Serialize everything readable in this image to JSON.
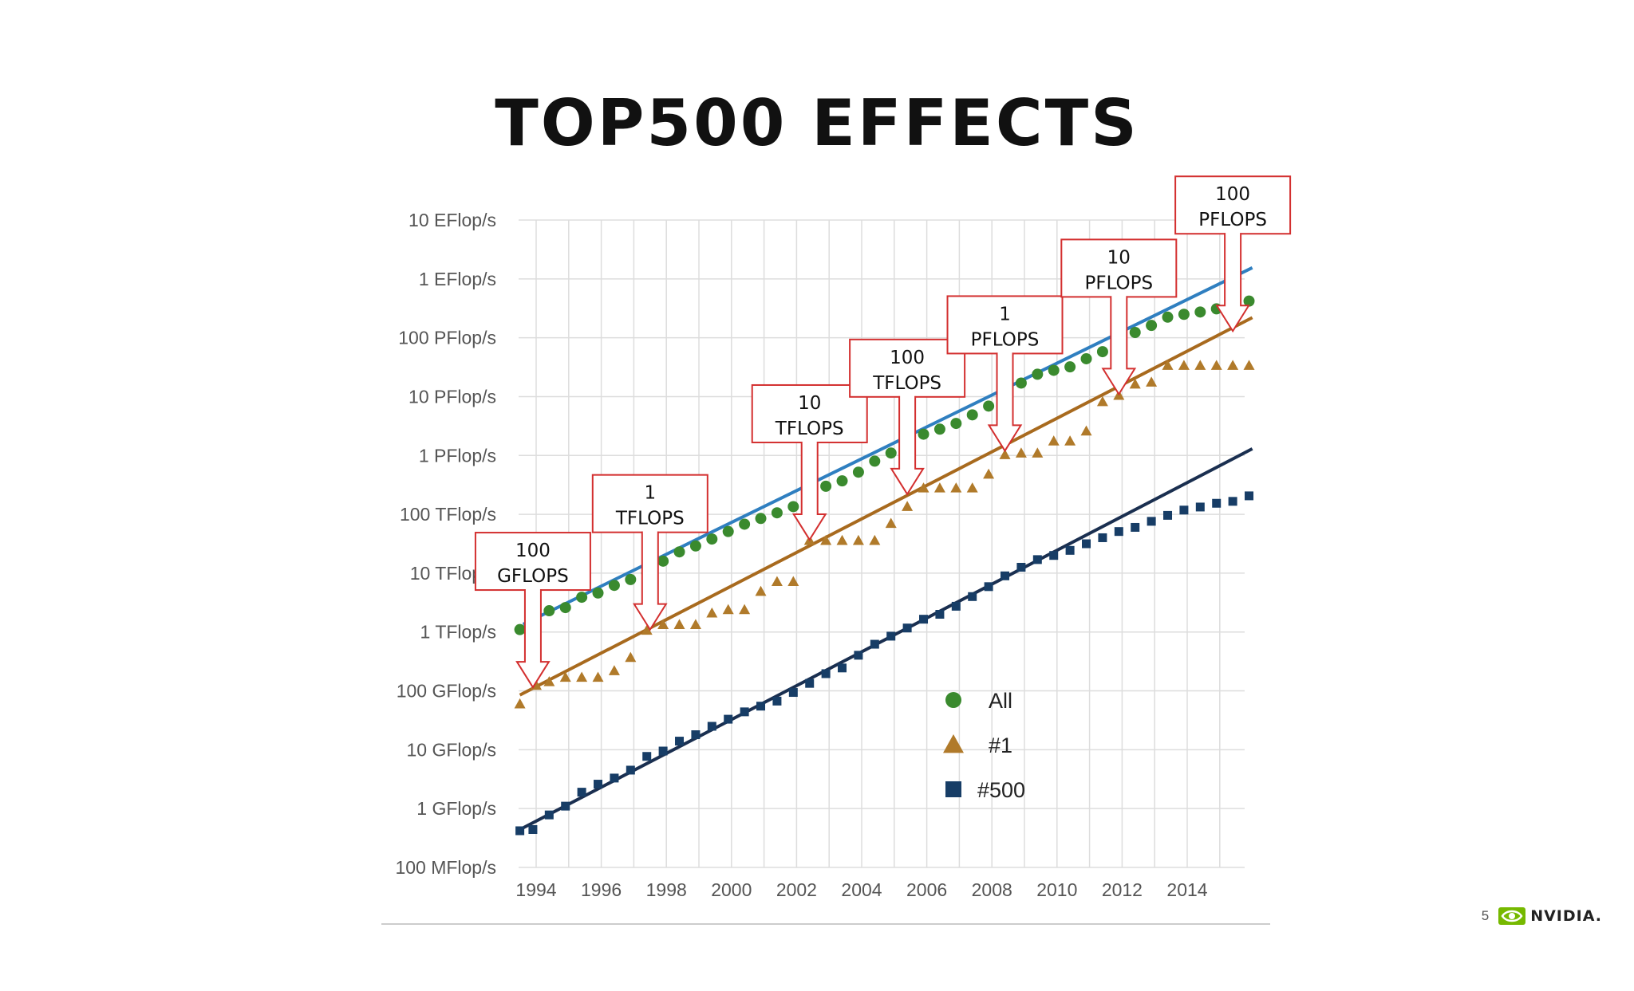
{
  "slide": {
    "title": "TOP500 EFFECTS",
    "page_number": "5",
    "brand": "NVIDIA."
  },
  "colors": {
    "all": "#3A8A2E",
    "first": "#B07A2A",
    "last": "#173D66",
    "trend_all": "#2F7FC0",
    "trend_first": "#A86A1E",
    "trend_last": "#1A2F50",
    "callout_border": "#D32F2F",
    "grid": "#DDDDDD",
    "brand_green": "#76B900"
  },
  "chart_data": {
    "type": "scatter",
    "y_scale": "log",
    "y_unit": "Flop/s",
    "xlim": [
      1993.5,
      2016
    ],
    "ylim": [
      100000000.0,
      1e+19
    ],
    "grid": true,
    "legend_position": "bottom-right",
    "y_ticks": [
      {
        "value": 1e+19,
        "label": "10 EFlop/s"
      },
      {
        "value": 1e+18,
        "label": "1 EFlop/s"
      },
      {
        "value": 1e+17,
        "label": "100 PFlop/s"
      },
      {
        "value": 1e+16,
        "label": "10 PFlop/s"
      },
      {
        "value": 1000000000000000.0,
        "label": "1 PFlop/s"
      },
      {
        "value": 100000000000000.0,
        "label": "100 TFlop/s"
      },
      {
        "value": 10000000000000.0,
        "label": "10 TFlop/s"
      },
      {
        "value": 1000000000000.0,
        "label": "1 TFlop/s"
      },
      {
        "value": 100000000000.0,
        "label": "100 GFlop/s"
      },
      {
        "value": 10000000000.0,
        "label": "10 GFlop/s"
      },
      {
        "value": 1000000000.0,
        "label": "1 GFlop/s"
      },
      {
        "value": 100000000.0,
        "label": "100 MFlop/s"
      }
    ],
    "x_ticks": [
      1994,
      1996,
      1998,
      2000,
      2002,
      2004,
      2006,
      2008,
      2010,
      2012,
      2014
    ],
    "series": [
      {
        "name": "All",
        "marker": "circle",
        "points": [
          [
            1993.5,
            1100000000000.0
          ],
          [
            1994.4,
            2300000000000.0
          ],
          [
            1994.9,
            2600000000000.0
          ],
          [
            1995.4,
            3900000000000.0
          ],
          [
            1995.9,
            4600000000000.0
          ],
          [
            1996.4,
            6200000000000.0
          ],
          [
            1996.9,
            7800000000000.0
          ],
          [
            1997.4,
            10000000000000.0
          ],
          [
            1997.9,
            16000000000000.0
          ],
          [
            1998.4,
            23000000000000.0
          ],
          [
            1998.9,
            29000000000000.0
          ],
          [
            1999.4,
            38000000000000.0
          ],
          [
            1999.9,
            51000000000000.0
          ],
          [
            2000.4,
            68000000000000.0
          ],
          [
            2000.9,
            85000000000000.0
          ],
          [
            2001.4,
            106000000000000.0
          ],
          [
            2001.9,
            135000000000000.0
          ],
          [
            2002.4,
            230000000000000.0
          ],
          [
            2002.9,
            300000000000000.0
          ],
          [
            2003.4,
            370000000000000.0
          ],
          [
            2003.9,
            520000000000000.0
          ],
          [
            2004.4,
            800000000000000.0
          ],
          [
            2004.9,
            1100000000000000.0
          ],
          [
            2005.4,
            1700000000000000.0
          ],
          [
            2005.9,
            2300000000000000.0
          ],
          [
            2006.4,
            2800000000000000.0
          ],
          [
            2006.9,
            3500000000000000.0
          ],
          [
            2007.4,
            4900000000000000.0
          ],
          [
            2007.9,
            6900000000000000.0
          ],
          [
            2008.4,
            1.1e+16
          ],
          [
            2008.9,
            1.7e+16
          ],
          [
            2009.4,
            2.4e+16
          ],
          [
            2009.9,
            2.8e+16
          ],
          [
            2010.4,
            3.2e+16
          ],
          [
            2010.9,
            4.4e+16
          ],
          [
            2011.4,
            5.8e+16
          ],
          [
            2011.9,
            7.4e+16
          ],
          [
            2012.4,
            1.23e+17
          ],
          [
            2012.9,
            1.62e+17
          ],
          [
            2013.4,
            2.24e+17
          ],
          [
            2013.9,
            2.5e+17
          ],
          [
            2014.4,
            2.74e+17
          ],
          [
            2014.9,
            3.1e+17
          ],
          [
            2015.4,
            3.6e+17
          ],
          [
            2015.9,
            4.2e+17
          ]
        ]
      },
      {
        "name": "#1",
        "marker": "triangle",
        "points": [
          [
            1993.5,
            60000000000.0
          ],
          [
            1994.0,
            124000000000.0
          ],
          [
            1994.4,
            143000000000.0
          ],
          [
            1994.9,
            170000000000.0
          ],
          [
            1995.4,
            170000000000.0
          ],
          [
            1995.9,
            170000000000.0
          ],
          [
            1996.4,
            220000000000.0
          ],
          [
            1996.9,
            370000000000.0
          ],
          [
            1997.4,
            1070000000000.0
          ],
          [
            1997.9,
            1340000000000.0
          ],
          [
            1998.4,
            1340000000000.0
          ],
          [
            1998.9,
            1340000000000.0
          ],
          [
            1999.4,
            2100000000000.0
          ],
          [
            1999.9,
            2400000000000.0
          ],
          [
            2000.4,
            2400000000000.0
          ],
          [
            2000.9,
            4900000000000.0
          ],
          [
            2001.4,
            7200000000000.0
          ],
          [
            2001.9,
            7200000000000.0
          ],
          [
            2002.4,
            36000000000000.0
          ],
          [
            2002.9,
            36000000000000.0
          ],
          [
            2003.4,
            36000000000000.0
          ],
          [
            2003.9,
            36000000000000.0
          ],
          [
            2004.4,
            36000000000000.0
          ],
          [
            2004.9,
            70000000000000.0
          ],
          [
            2005.4,
            136000000000000.0
          ],
          [
            2005.9,
            280000000000000.0
          ],
          [
            2006.4,
            280000000000000.0
          ],
          [
            2006.9,
            280000000000000.0
          ],
          [
            2007.4,
            280000000000000.0
          ],
          [
            2007.9,
            480000000000000.0
          ],
          [
            2008.4,
            1030000000000000.0
          ],
          [
            2008.9,
            1100000000000000.0
          ],
          [
            2009.4,
            1100000000000000.0
          ],
          [
            2009.9,
            1760000000000000.0
          ],
          [
            2010.4,
            1760000000000000.0
          ],
          [
            2010.9,
            2600000000000000.0
          ],
          [
            2011.4,
            8200000000000000.0
          ],
          [
            2011.9,
            1.05e+16
          ],
          [
            2012.4,
            1.63e+16
          ],
          [
            2012.9,
            1.76e+16
          ],
          [
            2013.4,
            3.39e+16
          ],
          [
            2013.9,
            3.39e+16
          ],
          [
            2014.4,
            3.39e+16
          ],
          [
            2014.9,
            3.39e+16
          ],
          [
            2015.4,
            3.39e+16
          ],
          [
            2015.9,
            3.39e+16
          ]
        ]
      },
      {
        "name": "#500",
        "marker": "square",
        "points": [
          [
            1993.5,
            420000000.0
          ],
          [
            1993.9,
            440000000.0
          ],
          [
            1994.4,
            780000000.0
          ],
          [
            1994.9,
            1100000000.0
          ],
          [
            1995.4,
            1900000000.0
          ],
          [
            1995.9,
            2600000000.0
          ],
          [
            1996.4,
            3300000000.0
          ],
          [
            1996.9,
            4500000000.0
          ],
          [
            1997.4,
            7700000000.0
          ],
          [
            1997.9,
            9500000000.0
          ],
          [
            1998.4,
            14000000000.0
          ],
          [
            1998.9,
            18000000000.0
          ],
          [
            1999.4,
            25000000000.0
          ],
          [
            1999.9,
            33000000000.0
          ],
          [
            2000.4,
            44000000000.0
          ],
          [
            2000.9,
            55000000000.0
          ],
          [
            2001.4,
            67000000000.0
          ],
          [
            2001.9,
            94000000000.0
          ],
          [
            2002.4,
            134000000000.0
          ],
          [
            2002.9,
            196000000000.0
          ],
          [
            2003.4,
            245000000000.0
          ],
          [
            2003.9,
            403000000000.0
          ],
          [
            2004.4,
            620000000000.0
          ],
          [
            2004.9,
            850000000000.0
          ],
          [
            2005.4,
            1170000000000.0
          ],
          [
            2005.9,
            1650000000000.0
          ],
          [
            2006.4,
            2000000000000.0
          ],
          [
            2006.9,
            2740000000000.0
          ],
          [
            2007.4,
            4000000000000.0
          ],
          [
            2007.9,
            5900000000000.0
          ],
          [
            2008.4,
            9000000000000.0
          ],
          [
            2008.9,
            12600000000000.0
          ],
          [
            2009.4,
            17000000000000.0
          ],
          [
            2009.9,
            20000000000000.0
          ],
          [
            2010.4,
            24400000000000.0
          ],
          [
            2010.9,
            31600000000000.0
          ],
          [
            2011.4,
            40000000000000.0
          ],
          [
            2011.9,
            51000000000000.0
          ],
          [
            2012.4,
            60000000000000.0
          ],
          [
            2012.9,
            76000000000000.0
          ],
          [
            2013.4,
            96000000000000.0
          ],
          [
            2013.9,
            118000000000000.0
          ],
          [
            2014.4,
            133000000000000.0
          ],
          [
            2014.9,
            154000000000000.0
          ],
          [
            2015.4,
            166000000000000.0
          ],
          [
            2015.9,
            206000000000000.0
          ]
        ]
      }
    ],
    "trend_lines": [
      {
        "series": "All",
        "from": [
          1993.6,
          1350000000000.0
        ],
        "to": [
          2016.0,
          1.55e+18
        ]
      },
      {
        "series": "#1",
        "from": [
          1993.5,
          85000000000.0
        ],
        "to": [
          2016.0,
          2.2e+17
        ]
      },
      {
        "series": "#500",
        "from": [
          1993.5,
          440000000.0
        ],
        "to": [
          2016.0,
          1300000000000000.0
        ]
      }
    ],
    "callouts": [
      {
        "lines": [
          "100",
          "GFLOPS"
        ],
        "year": 1993.9,
        "value": 115000000000.0
      },
      {
        "lines": [
          "1",
          "TFLOPS"
        ],
        "year": 1997.5,
        "value": 1100000000000.0
      },
      {
        "lines": [
          "10",
          "TFLOPS"
        ],
        "year": 2002.4,
        "value": 37000000000000.0
      },
      {
        "lines": [
          "100",
          "TFLOPS"
        ],
        "year": 2005.4,
        "value": 220000000000000.0
      },
      {
        "lines": [
          "1",
          "PFLOPS"
        ],
        "year": 2008.4,
        "value": 1200000000000000.0
      },
      {
        "lines": [
          "10",
          "PFLOPS"
        ],
        "year": 2011.9,
        "value": 1.1e+16
      },
      {
        "lines": [
          "100",
          "PFLOPS"
        ],
        "year": 2015.4,
        "value": 1.3e+17
      }
    ]
  }
}
